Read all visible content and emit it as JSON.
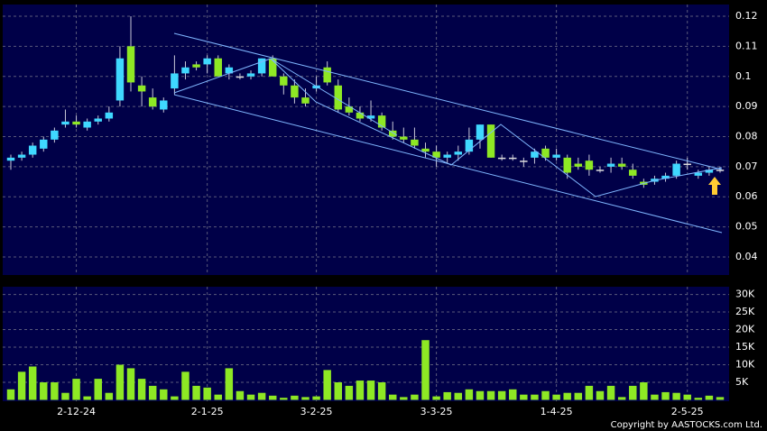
{
  "chart_data": {
    "type": "candlestick",
    "categories": [
      null,
      null,
      null,
      null,
      null,
      null,
      "2-12-24",
      null,
      null,
      null,
      null,
      null,
      null,
      null,
      null,
      null,
      null,
      null,
      "2-1-25",
      null,
      null,
      null,
      null,
      null,
      null,
      null,
      null,
      null,
      "3-2-25",
      null,
      null,
      null,
      null,
      null,
      null,
      null,
      null,
      null,
      null,
      "3-3-25",
      null,
      null,
      null,
      null,
      null,
      null,
      null,
      null,
      null,
      null,
      "1-4-25",
      null,
      null,
      null,
      null,
      null,
      null,
      null,
      null,
      null,
      null,
      null,
      "2-5-25",
      null,
      null,
      null
    ],
    "open": [
      0.072,
      0.073,
      0.074,
      0.076,
      0.079,
      0.084,
      0.085,
      0.083,
      0.085,
      0.086,
      0.092,
      0.11,
      0.097,
      0.093,
      0.089,
      0.096,
      0.101,
      0.104,
      0.104,
      0.106,
      0.101,
      0.1,
      0.1,
      0.101,
      0.106,
      0.1,
      0.097,
      0.093,
      0.096,
      0.103,
      0.097,
      0.09,
      0.088,
      0.086,
      0.087,
      0.082,
      0.08,
      0.079,
      0.076,
      0.075,
      0.073,
      0.074,
      0.075,
      0.079,
      0.084,
      0.073,
      0.073,
      0.072,
      0.073,
      0.076,
      0.073,
      0.073,
      0.071,
      0.072,
      0.069,
      0.07,
      0.071,
      0.069,
      0.065,
      0.065,
      0.066,
      0.067,
      0.071,
      0.067,
      0.068,
      0.069
    ],
    "high": [
      0.074,
      0.075,
      0.078,
      0.08,
      0.083,
      0.089,
      0.087,
      0.086,
      0.087,
      0.09,
      0.11,
      0.12,
      0.1,
      0.096,
      0.093,
      0.107,
      0.105,
      0.105,
      0.107,
      0.107,
      0.104,
      0.101,
      0.102,
      0.106,
      0.107,
      0.101,
      0.099,
      0.096,
      0.1,
      0.105,
      0.099,
      0.093,
      0.09,
      0.092,
      0.088,
      0.085,
      0.083,
      0.083,
      0.078,
      0.077,
      0.075,
      0.077,
      0.083,
      0.084,
      0.084,
      0.074,
      0.074,
      0.073,
      0.076,
      0.077,
      0.076,
      0.074,
      0.073,
      0.074,
      0.07,
      0.073,
      0.073,
      0.071,
      0.066,
      0.067,
      0.068,
      0.072,
      0.073,
      0.069,
      0.07,
      0.07
    ],
    "low": [
      0.069,
      0.072,
      0.073,
      0.075,
      0.078,
      0.083,
      0.083,
      0.082,
      0.084,
      0.085,
      0.09,
      0.095,
      0.09,
      0.089,
      0.088,
      0.094,
      0.099,
      0.102,
      0.101,
      0.1,
      0.099,
      0.099,
      0.099,
      0.1,
      0.1,
      0.094,
      0.091,
      0.09,
      0.095,
      0.097,
      0.088,
      0.087,
      0.085,
      0.085,
      0.082,
      0.079,
      0.078,
      0.076,
      0.073,
      0.07,
      0.071,
      0.072,
      0.074,
      0.076,
      0.073,
      0.072,
      0.072,
      0.07,
      0.071,
      0.072,
      0.072,
      0.066,
      0.069,
      0.067,
      0.068,
      0.068,
      0.069,
      0.066,
      0.063,
      0.064,
      0.065,
      0.066,
      0.069,
      0.066,
      0.067,
      0.068
    ],
    "close": [
      0.073,
      0.074,
      0.077,
      0.079,
      0.082,
      0.085,
      0.084,
      0.085,
      0.086,
      0.088,
      0.106,
      0.098,
      0.095,
      0.09,
      0.092,
      0.101,
      0.103,
      0.103,
      0.106,
      0.1,
      0.103,
      0.1,
      0.101,
      0.106,
      0.1,
      0.097,
      0.093,
      0.091,
      0.097,
      0.098,
      0.089,
      0.088,
      0.086,
      0.087,
      0.083,
      0.08,
      0.079,
      0.077,
      0.075,
      0.073,
      0.074,
      0.075,
      0.079,
      0.084,
      0.073,
      0.073,
      0.073,
      0.072,
      0.075,
      0.073,
      0.074,
      0.068,
      0.07,
      0.069,
      0.069,
      0.071,
      0.07,
      0.067,
      0.064,
      0.066,
      0.067,
      0.071,
      0.071,
      0.068,
      0.069,
      0.069
    ],
    "volume": [
      3000,
      8000,
      9500,
      5000,
      5000,
      2000,
      6000,
      1000,
      6000,
      2000,
      10000,
      9000,
      6000,
      4000,
      3000,
      1000,
      8000,
      4000,
      3500,
      1500,
      9000,
      2500,
      1500,
      2000,
      1200,
      600,
      1200,
      800,
      1000,
      8500,
      5000,
      4000,
      5500,
      5500,
      5000,
      1500,
      800,
      1500,
      17000,
      1000,
      2200,
      2000,
      3000,
      2500,
      2500,
      2500,
      3000,
      1500,
      1500,
      2500,
      1500,
      2000,
      2000,
      4000,
      2500,
      4000,
      800,
      4000,
      5000,
      1500,
      2200,
      2000,
      1500,
      600,
      1200,
      800
    ],
    "up_color": "#3fd8ff",
    "down_color": "#8ee824",
    "flat_color": "#dddddd",
    "volume_color": "#8ee824",
    "ylim": [
      0.034,
      0.1239
    ],
    "yticks": [
      0.04,
      0.05,
      0.06,
      0.07,
      0.08,
      0.09,
      0.1,
      0.11,
      0.12
    ],
    "y2lim": [
      0,
      32200
    ],
    "y2ticks": [
      {
        "value": 5000,
        "label": "5K"
      },
      {
        "value": 10000,
        "label": "10K"
      },
      {
        "value": 15000,
        "label": "15K"
      },
      {
        "value": 20000,
        "label": "20K"
      },
      {
        "value": 25000,
        "label": "25K"
      },
      {
        "value": 30000,
        "label": "30K"
      }
    ],
    "grid": true,
    "copyright": "Copyright by AASTOCKS.com Ltd."
  }
}
